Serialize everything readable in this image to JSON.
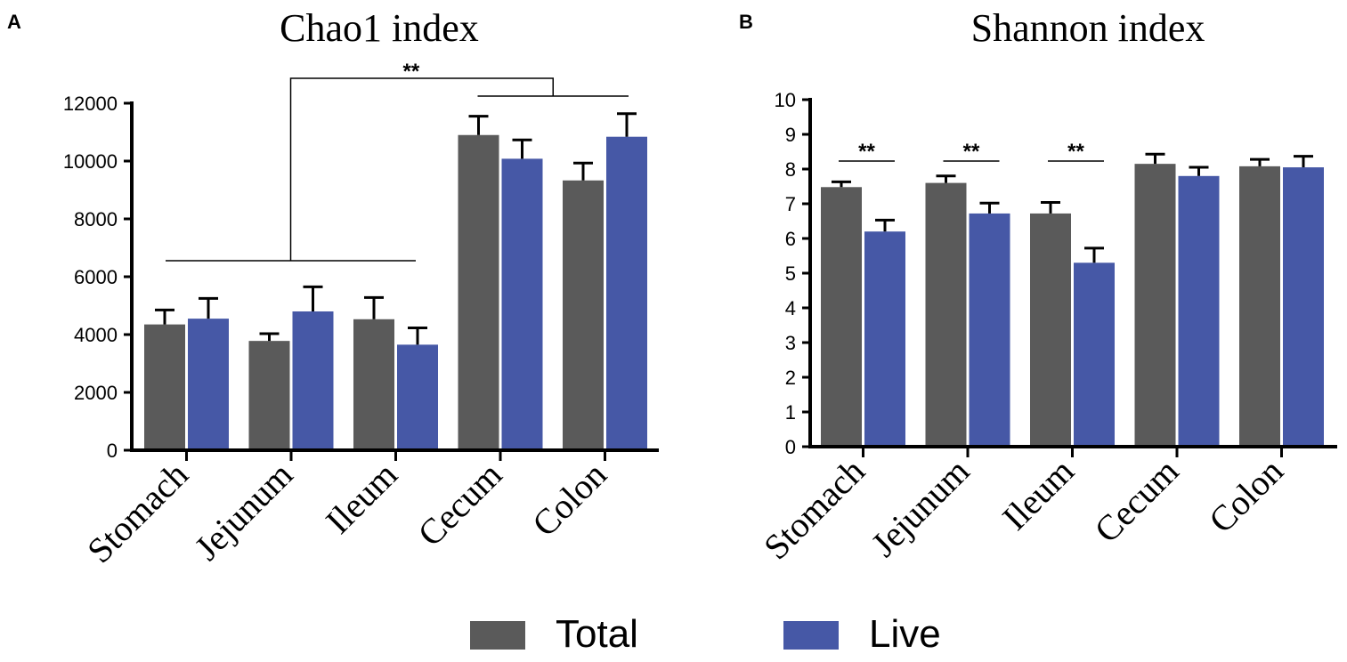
{
  "colors": {
    "total": "#5a5a5a",
    "live": "#4658a6",
    "axis": "#000000"
  },
  "legend": [
    {
      "name": "Total",
      "color": "#5a5a5a"
    },
    {
      "name": "Live",
      "color": "#4658a6"
    }
  ],
  "chart_data": [
    {
      "panel": "A",
      "type": "bar",
      "title": "Chao1 index",
      "categories": [
        "Stomach",
        "Jejunum",
        "Ileum",
        "Cecum",
        "Colon"
      ],
      "series": [
        {
          "name": "Total",
          "values": [
            4350,
            3780,
            4530,
            10900,
            9330
          ],
          "errors": [
            500,
            250,
            750,
            650,
            600
          ]
        },
        {
          "name": "Live",
          "values": [
            4550,
            4800,
            3650,
            10080,
            10840
          ],
          "errors": [
            700,
            850,
            580,
            650,
            800
          ]
        }
      ],
      "ylim": [
        0,
        12000
      ],
      "yticks": [
        "0",
        "2000",
        "4000",
        "6000",
        "8000",
        "10000",
        "12000"
      ],
      "annotations": [
        {
          "type": "group-bracket",
          "label": "**",
          "left_group": [
            "Stomach",
            "Jejunum",
            "Ileum"
          ],
          "right_group": [
            "Cecum",
            "Colon"
          ]
        }
      ]
    },
    {
      "panel": "B",
      "type": "bar",
      "title": "Shannon index",
      "categories": [
        "Stomach",
        "Jejunum",
        "Ileum",
        "Cecum",
        "Colon"
      ],
      "series": [
        {
          "name": "Total",
          "values": [
            7.48,
            7.6,
            6.72,
            8.15,
            8.08
          ],
          "errors": [
            0.15,
            0.2,
            0.32,
            0.28,
            0.2
          ]
        },
        {
          "name": "Live",
          "values": [
            6.2,
            6.72,
            5.3,
            7.8,
            8.05
          ],
          "errors": [
            0.33,
            0.3,
            0.42,
            0.25,
            0.32
          ]
        }
      ],
      "ylim": [
        0,
        10
      ],
      "yticks": [
        "0",
        "1",
        "2",
        "3",
        "4",
        "5",
        "6",
        "7",
        "8",
        "9",
        "10"
      ],
      "annotations": [
        {
          "type": "pair",
          "label": "**",
          "category": "Stomach"
        },
        {
          "type": "pair",
          "label": "**",
          "category": "Jejunum"
        },
        {
          "type": "pair",
          "label": "**",
          "category": "Ileum"
        }
      ]
    }
  ]
}
